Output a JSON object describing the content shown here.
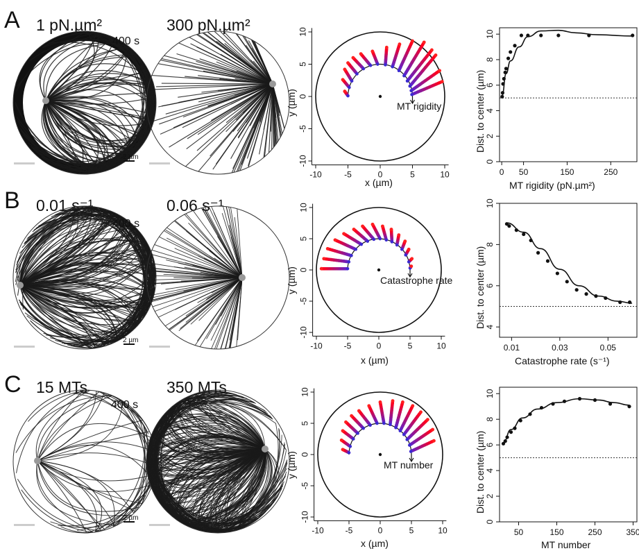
{
  "rows": [
    {
      "letter": "A",
      "sims": [
        {
          "condition": "1 pN.µm²",
          "time": "400 s",
          "scale": "2 µm"
        },
        {
          "condition": "300 pN.µm²"
        }
      ],
      "traj": {
        "ann": "MT rigidity",
        "xlabel": "x (µm)",
        "ylabel": "y (µm)",
        "xticks": [
          "-10",
          "-5",
          "0",
          "5",
          "10"
        ],
        "yticks": [
          "-10",
          "-5",
          "0",
          "5",
          "10"
        ]
      },
      "chart": {
        "xlabel": "MT rigidity (pN.µm²)",
        "ylabel": "Dist. to center (µm)",
        "xticks": [
          "0",
          "50",
          "150",
          "250"
        ],
        "yticks": [
          "0",
          "2",
          "4",
          "6",
          "8",
          "10"
        ]
      }
    },
    {
      "letter": "B",
      "sims": [
        {
          "condition": "0.01 s⁻¹",
          "time": "400 s",
          "scale": "2 µm"
        },
        {
          "condition": "0.06 s⁻¹"
        }
      ],
      "traj": {
        "ann": "Catastrophe rate",
        "xlabel": "x (µm)",
        "ylabel": "y (µm)",
        "xticks": [
          "-10",
          "-5",
          "0",
          "5",
          "10"
        ],
        "yticks": [
          "-10",
          "-5",
          "0",
          "5",
          "10"
        ]
      },
      "chart": {
        "xlabel": "Catastrophe rate (s⁻¹)",
        "ylabel": "Dist. to center (µm)",
        "xticks": [
          "0.01",
          "0.03",
          "0.05"
        ],
        "yticks": [
          "4",
          "6",
          "8",
          "10"
        ]
      }
    },
    {
      "letter": "C",
      "sims": [
        {
          "condition": "15 MTs",
          "time": "400 s",
          "scale": "2 µm"
        },
        {
          "condition": "350 MTs"
        }
      ],
      "traj": {
        "ann": "MT number",
        "xlabel": "x (µm)",
        "ylabel": "y (µm)",
        "xticks": [
          "-10",
          "-5",
          "0",
          "5",
          "10"
        ],
        "yticks": [
          "-10",
          "-5",
          "0",
          "5",
          "10"
        ]
      },
      "chart": {
        "xlabel": "MT number",
        "ylabel": "Dist. to center (µm)",
        "xticks": [
          "50",
          "150",
          "250",
          "350"
        ],
        "yticks": [
          "0",
          "2",
          "4",
          "6",
          "8",
          "10"
        ]
      }
    }
  ],
  "chart_data": [
    {
      "type": "scatter",
      "panel": "A",
      "xlabel": "MT rigidity (pN.µm²)",
      "ylabel": "Dist. to center (µm)",
      "xlim": [
        -5,
        310
      ],
      "ylim": [
        0,
        10.5
      ],
      "points": {
        "x": [
          1,
          2,
          3,
          5,
          8,
          10,
          15,
          20,
          30,
          45,
          60,
          90,
          130,
          200,
          300
        ],
        "y": [
          5.1,
          5.4,
          6.1,
          6.5,
          7.0,
          7.3,
          8.1,
          8.6,
          9.1,
          9.9,
          9.9,
          9.9,
          9.9,
          9.9,
          9.9
        ]
      },
      "fit": {
        "x": [
          1,
          10,
          20,
          40,
          60,
          90,
          130,
          170,
          220,
          300
        ],
        "y": [
          5.2,
          6.9,
          7.9,
          9.0,
          9.8,
          10.25,
          10.3,
          10.1,
          9.95,
          9.85
        ]
      },
      "reference_line": 5
    },
    {
      "type": "scatter",
      "panel": "B",
      "xlabel": "Catastrophe rate (s⁻¹)",
      "ylabel": "Dist. to center (µm)",
      "xlim": [
        0.005,
        0.062
      ],
      "ylim": [
        3.5,
        10
      ],
      "points": {
        "x": [
          0.008,
          0.009,
          0.012,
          0.015,
          0.018,
          0.021,
          0.025,
          0.029,
          0.033,
          0.037,
          0.041,
          0.045,
          0.049,
          0.055,
          0.059
        ],
        "y": [
          9.0,
          8.9,
          8.7,
          8.5,
          8.2,
          7.6,
          7.2,
          6.6,
          6.2,
          5.8,
          5.6,
          5.5,
          5.4,
          5.2,
          5.2
        ]
      },
      "fit": {
        "x": [
          0.008,
          0.015,
          0.022,
          0.03,
          0.038,
          0.046,
          0.054,
          0.06
        ],
        "y": [
          9.05,
          8.6,
          7.8,
          6.8,
          6.0,
          5.5,
          5.25,
          5.15
        ]
      },
      "reference_line": 5
    },
    {
      "type": "scatter",
      "panel": "C",
      "xlabel": "MT number",
      "ylabel": "Dist. to center (µm)",
      "xlim": [
        0,
        360
      ],
      "ylim": [
        0,
        10.5
      ],
      "points": {
        "x": [
          10,
          15,
          20,
          30,
          40,
          55,
          80,
          110,
          140,
          170,
          210,
          250,
          290,
          340
        ],
        "y": [
          6.1,
          6.3,
          6.6,
          7.0,
          7.3,
          7.9,
          8.4,
          8.9,
          9.2,
          9.4,
          9.6,
          9.5,
          9.2,
          9.0
        ]
      },
      "fit": {
        "x": [
          10,
          30,
          60,
          100,
          150,
          210,
          260,
          300,
          340
        ],
        "y": [
          6.2,
          7.2,
          8.1,
          8.8,
          9.3,
          9.6,
          9.5,
          9.3,
          9.1
        ]
      },
      "reference_line": 5
    }
  ],
  "trajectory_data": [
    {
      "panel": "A",
      "arc_radius": 5,
      "traces": [
        {
          "sx": -5.0,
          "sy": 0.1,
          "ex": -5.5,
          "ey": 0.8
        },
        {
          "sx": -4.8,
          "sy": 1.4,
          "ex": -5.8,
          "ey": 2.6
        },
        {
          "sx": -4.4,
          "sy": 2.4,
          "ex": -5.5,
          "ey": 4.2
        },
        {
          "sx": -3.6,
          "sy": 3.5,
          "ex": -5.0,
          "ey": 5.2
        },
        {
          "sx": -2.6,
          "sy": 4.3,
          "ex": -4.2,
          "ey": 6.0
        },
        {
          "sx": -1.5,
          "sy": 4.8,
          "ex": -3.0,
          "ey": 6.6
        },
        {
          "sx": -0.4,
          "sy": 5.0,
          "ex": -1.2,
          "ey": 7.0
        },
        {
          "sx": 0.8,
          "sy": 4.9,
          "ex": 1.0,
          "ey": 7.6
        },
        {
          "sx": 1.9,
          "sy": 4.6,
          "ex": 3.0,
          "ey": 8.1
        },
        {
          "sx": 2.9,
          "sy": 4.0,
          "ex": 5.0,
          "ey": 8.6
        },
        {
          "sx": 3.7,
          "sy": 3.2,
          "ex": 6.8,
          "ey": 8.4
        },
        {
          "sx": 4.2,
          "sy": 2.4,
          "ex": 8.0,
          "ey": 7.2
        },
        {
          "sx": 4.6,
          "sy": 1.6,
          "ex": 8.6,
          "ey": 6.4
        },
        {
          "sx": 4.8,
          "sy": 0.9,
          "ex": 9.2,
          "ey": 4.0
        },
        {
          "sx": 4.9,
          "sy": 0.3,
          "ex": 9.6,
          "ey": 2.3
        }
      ]
    },
    {
      "panel": "B",
      "arc_radius": 5,
      "traces": [
        {
          "sx": -5.0,
          "sy": 0.2,
          "ex": -9.2,
          "ey": 0.2
        },
        {
          "sx": -4.8,
          "sy": 1.3,
          "ex": -8.8,
          "ey": 1.8
        },
        {
          "sx": -4.4,
          "sy": 2.3,
          "ex": -8.2,
          "ey": 3.4
        },
        {
          "sx": -3.7,
          "sy": 3.3,
          "ex": -7.0,
          "ey": 4.8
        },
        {
          "sx": -2.8,
          "sy": 4.1,
          "ex": -5.6,
          "ey": 5.8
        },
        {
          "sx": -1.8,
          "sy": 4.6,
          "ex": -4.0,
          "ey": 6.5
        },
        {
          "sx": -0.8,
          "sy": 4.9,
          "ex": -2.6,
          "ey": 7.0
        },
        {
          "sx": 0.2,
          "sy": 5.0,
          "ex": -1.0,
          "ey": 7.3
        },
        {
          "sx": 1.2,
          "sy": 4.8,
          "ex": 0.6,
          "ey": 7.0
        },
        {
          "sx": 2.1,
          "sy": 4.5,
          "ex": 2.0,
          "ey": 6.5
        },
        {
          "sx": 2.9,
          "sy": 4.0,
          "ex": 3.2,
          "ey": 5.6
        },
        {
          "sx": 3.7,
          "sy": 3.3,
          "ex": 4.2,
          "ey": 4.6
        },
        {
          "sx": 4.3,
          "sy": 2.4,
          "ex": 4.8,
          "ey": 3.3
        },
        {
          "sx": 4.8,
          "sy": 1.3,
          "ex": 5.3,
          "ey": 1.8
        },
        {
          "sx": 5.0,
          "sy": 0.3,
          "ex": 5.2,
          "ey": 0.6
        }
      ]
    },
    {
      "panel": "C",
      "arc_radius": 5,
      "traces": [
        {
          "sx": -5.0,
          "sy": 0.3,
          "ex": -6.0,
          "ey": 0.8
        },
        {
          "sx": -4.8,
          "sy": 1.3,
          "ex": -6.2,
          "ey": 2.3
        },
        {
          "sx": -4.3,
          "sy": 2.5,
          "ex": -6.0,
          "ey": 3.8
        },
        {
          "sx": -3.6,
          "sy": 3.4,
          "ex": -5.5,
          "ey": 5.2
        },
        {
          "sx": -2.7,
          "sy": 4.2,
          "ex": -4.6,
          "ey": 6.2
        },
        {
          "sx": -1.6,
          "sy": 4.7,
          "ex": -3.4,
          "ey": 7.0
        },
        {
          "sx": -0.5,
          "sy": 5.0,
          "ex": -1.8,
          "ey": 7.8
        },
        {
          "sx": 0.6,
          "sy": 5.0,
          "ex": 0.0,
          "ey": 8.4
        },
        {
          "sx": 1.6,
          "sy": 4.8,
          "ex": 2.0,
          "ey": 8.6
        },
        {
          "sx": 2.5,
          "sy": 4.3,
          "ex": 3.6,
          "ey": 8.4
        },
        {
          "sx": 3.2,
          "sy": 3.8,
          "ex": 5.2,
          "ey": 7.8
        },
        {
          "sx": 3.8,
          "sy": 3.2,
          "ex": 6.5,
          "ey": 6.8
        },
        {
          "sx": 4.3,
          "sy": 2.4,
          "ex": 7.6,
          "ey": 5.6
        },
        {
          "sx": 4.7,
          "sy": 1.5,
          "ex": 8.4,
          "ey": 4.0
        },
        {
          "sx": 4.9,
          "sy": 0.5,
          "ex": 8.6,
          "ey": 2.2
        }
      ]
    }
  ]
}
